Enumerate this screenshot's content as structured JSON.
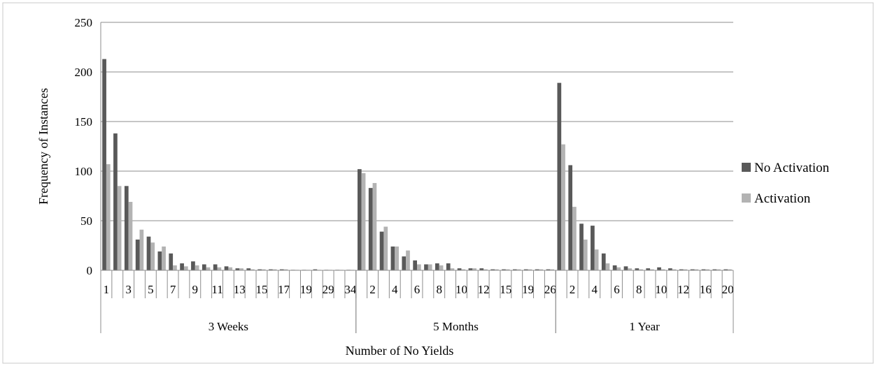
{
  "chart_data": {
    "type": "bar",
    "title": "",
    "ylabel": "Frequency of Instances",
    "xlabel": "Number of No Yields",
    "ylim": [
      0,
      250
    ],
    "yticks": [
      0,
      50,
      100,
      150,
      200,
      250
    ],
    "grid": true,
    "legend": {
      "placement": "right",
      "entries": [
        {
          "name": "No Activation",
          "color": "#595959"
        },
        {
          "name": "Activation",
          "color": "#b3b3b3"
        }
      ]
    },
    "series": [
      {
        "name": "No Activation",
        "color": "#595959"
      },
      {
        "name": "Activation",
        "color": "#b3b3b3"
      }
    ],
    "groups": [
      {
        "label": "3 Weeks",
        "categories": [
          "1",
          "2",
          "3",
          "4",
          "5",
          "6",
          "7",
          "8",
          "9",
          "10",
          "11",
          "12",
          "13",
          "14",
          "15",
          "16",
          "17",
          "18",
          "19",
          "20",
          "29",
          "30",
          "34"
        ],
        "tick_labels": [
          "1",
          "3",
          "5",
          "7",
          "9",
          "11",
          "13",
          "15",
          "17",
          "19",
          "29",
          "34"
        ],
        "values": [
          [
            213,
            138,
            85,
            31,
            34,
            19,
            17,
            7,
            9,
            6,
            6,
            4,
            2,
            2,
            1,
            1,
            1,
            0.5,
            0.5,
            1,
            0.5,
            0.5,
            0.5
          ],
          [
            107,
            85,
            69,
            41,
            28,
            24,
            5,
            4,
            5,
            3,
            3,
            3,
            2,
            1,
            1,
            1,
            1,
            0.5,
            0.5,
            0.5,
            0.5,
            0.5,
            0.5
          ]
        ]
      },
      {
        "label": "5 Months",
        "categories": [
          "1",
          "2",
          "3",
          "4",
          "5",
          "6",
          "7",
          "8",
          "9",
          "10",
          "11",
          "12",
          "13",
          "15",
          "16",
          "19",
          "20",
          "26"
        ],
        "tick_labels": [
          "2",
          "4",
          "6",
          "8",
          "10",
          "12",
          "15",
          "19",
          "26"
        ],
        "values": [
          [
            102,
            83,
            39,
            24,
            14,
            10,
            6,
            7,
            7,
            2,
            2,
            2,
            1,
            1,
            1,
            1,
            1,
            1
          ],
          [
            98,
            88,
            44,
            24,
            20,
            6,
            6,
            5,
            2,
            1,
            2,
            1,
            1,
            1,
            1,
            1,
            1,
            1
          ]
        ]
      },
      {
        "label": "1 Year",
        "categories": [
          "1",
          "2",
          "3",
          "4",
          "5",
          "6",
          "7",
          "8",
          "9",
          "10",
          "11",
          "12",
          "13",
          "16",
          "17",
          "20"
        ],
        "tick_labels": [
          "2",
          "4",
          "6",
          "8",
          "10",
          "12",
          "16",
          "20"
        ],
        "values": [
          [
            189,
            106,
            47,
            45,
            17,
            5,
            4,
            2,
            2,
            3,
            2,
            1,
            1,
            1,
            1,
            1
          ],
          [
            127,
            64,
            31,
            21,
            7,
            3,
            2,
            1,
            1,
            1,
            1,
            1,
            1,
            1,
            1,
            1
          ]
        ]
      }
    ]
  }
}
